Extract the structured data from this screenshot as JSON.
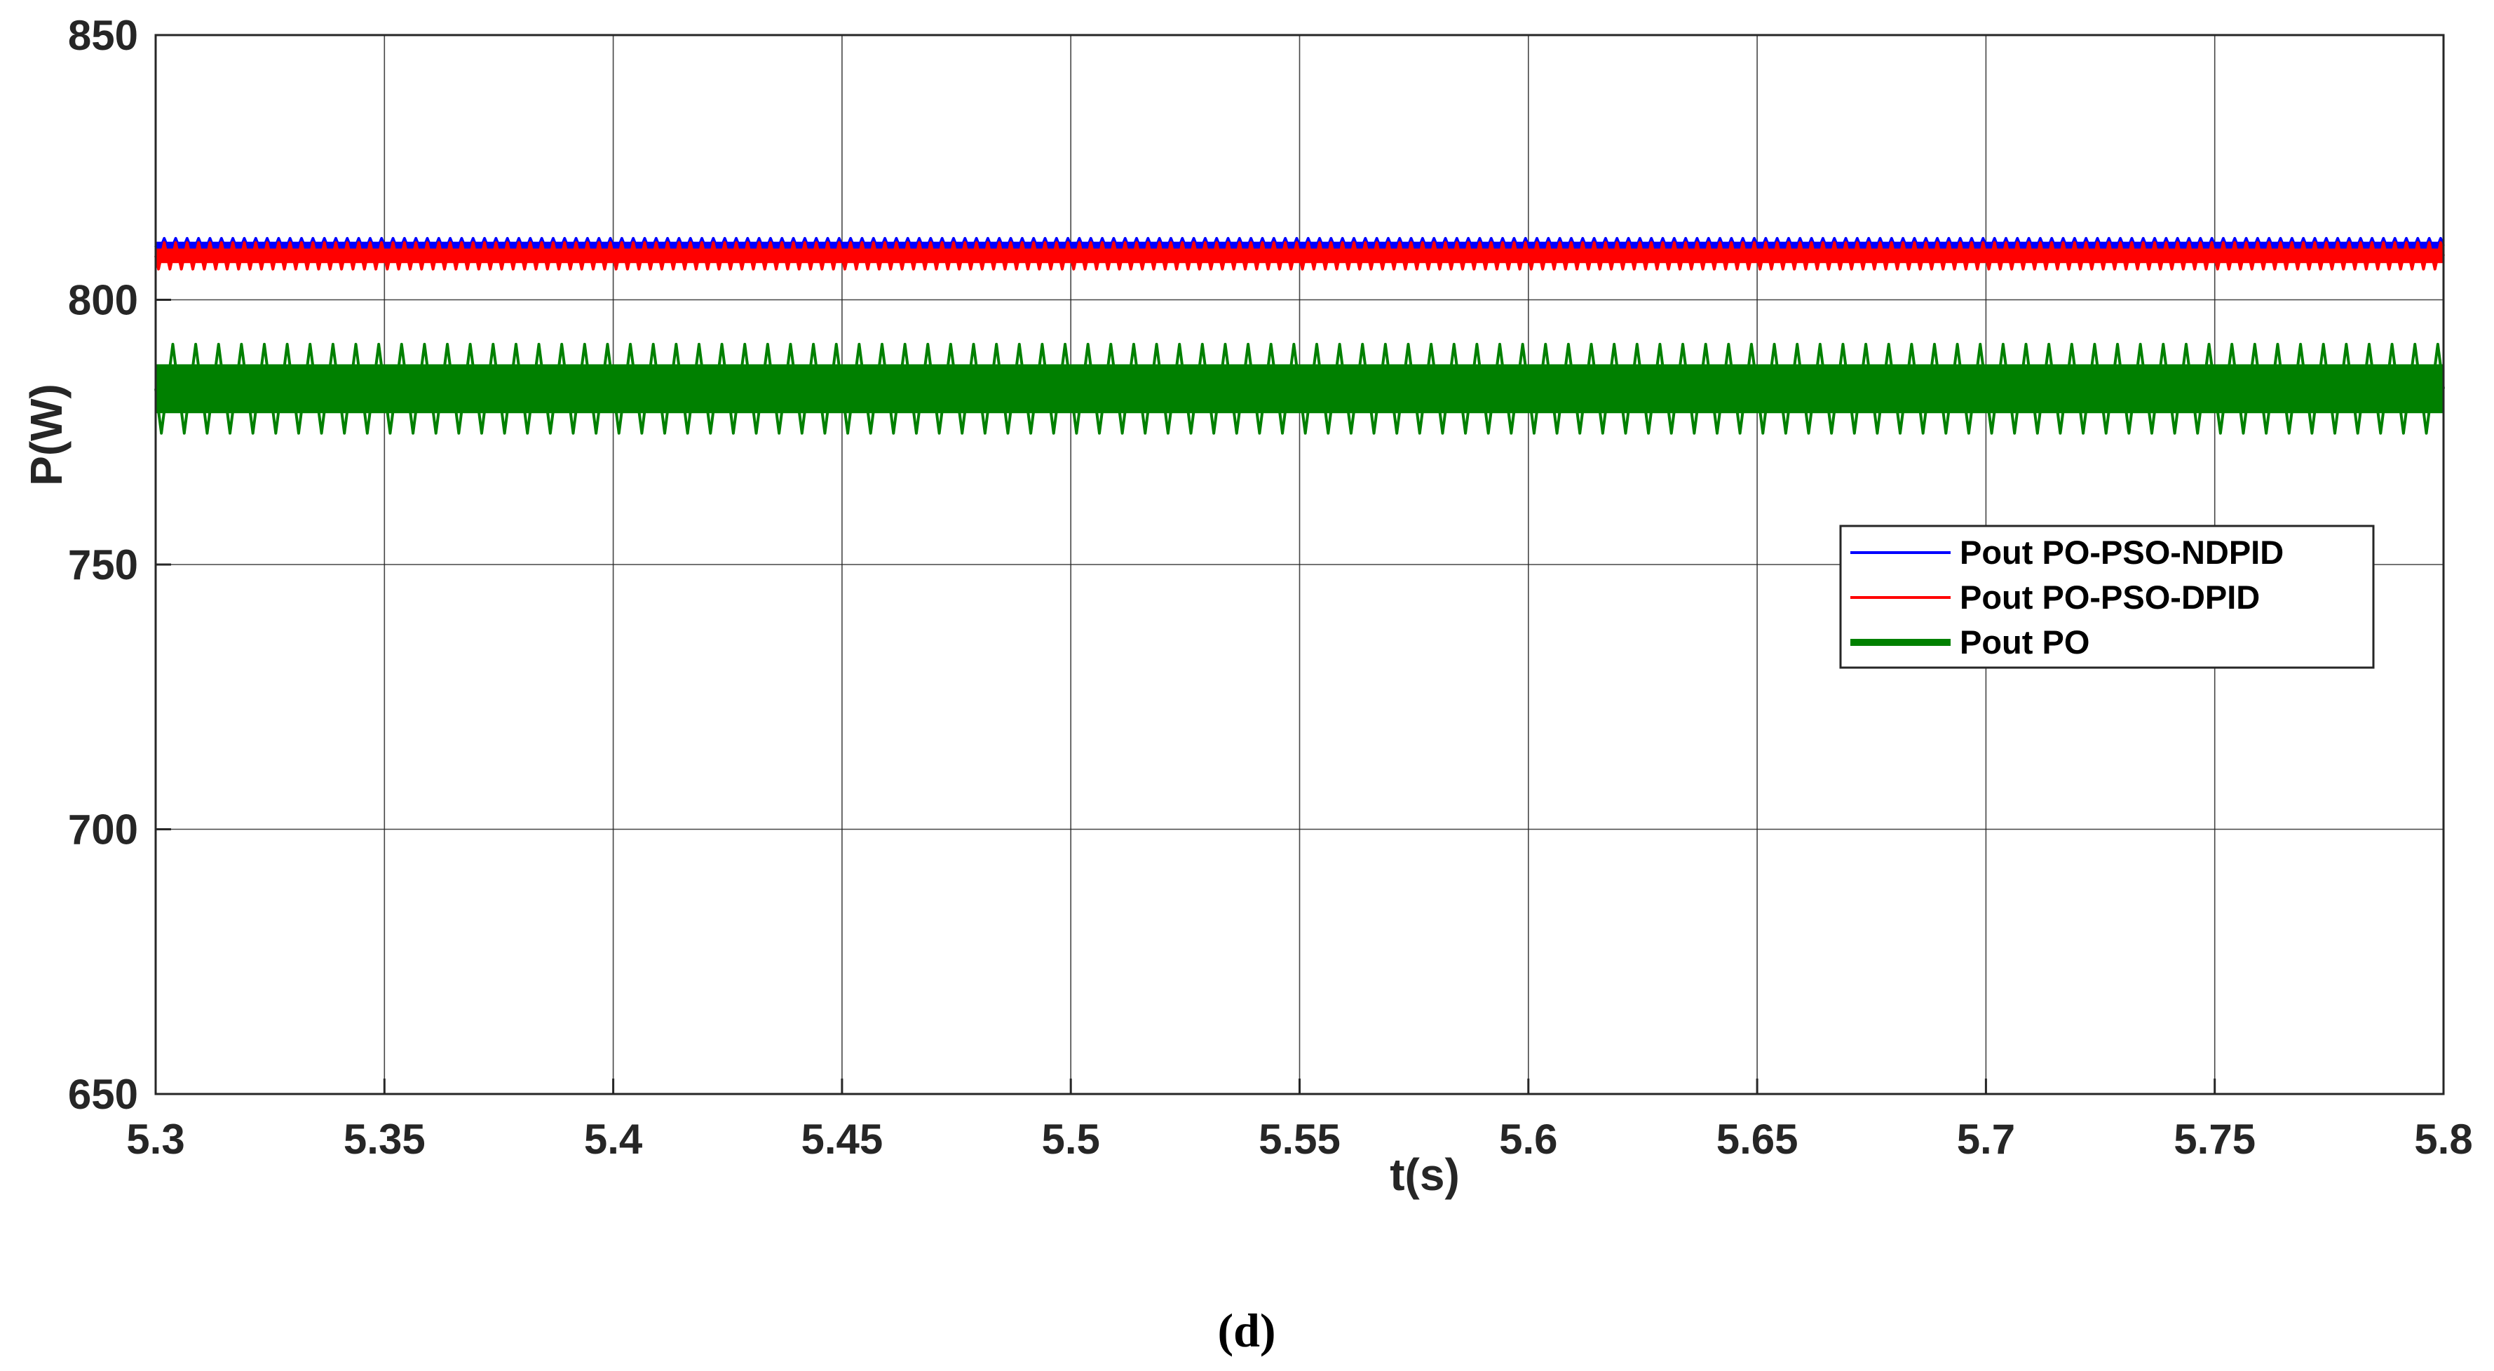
{
  "chart_data": {
    "type": "line",
    "title": "",
    "xlabel": "t(s)",
    "ylabel": "P(W)",
    "xlim": [
      5.3,
      5.8
    ],
    "ylim": [
      650,
      850
    ],
    "xticks": [
      "5.3",
      "5.35",
      "5.4",
      "5.45",
      "5.5",
      "5.55",
      "5.6",
      "5.65",
      "5.7",
      "5.75",
      "5.8"
    ],
    "yticks": [
      "650",
      "700",
      "750",
      "800",
      "850"
    ],
    "grid": true,
    "legend_position": "right",
    "series": [
      {
        "name": "Pout PO-PSO-NDPID",
        "color": "#0000ff",
        "x": [
          5.3,
          5.8
        ],
        "y_mean": 810.2,
        "y_min": 808.8,
        "y_max": 811.6,
        "ripple_cycles": 200
      },
      {
        "name": "Pout PO-PSO-DPID",
        "color": "#ff0000",
        "x": [
          5.3,
          5.8
        ],
        "y_mean": 808.3,
        "y_min": 805.8,
        "y_max": 810.8,
        "ripple_cycles": 200
      },
      {
        "name": "Pout PO",
        "color": "#008000",
        "x": [
          5.3,
          5.8
        ],
        "y_mean": 783.2,
        "y_min": 774.8,
        "y_max": 791.6,
        "ripple_cycles": 100
      }
    ]
  },
  "caption": "(d)"
}
